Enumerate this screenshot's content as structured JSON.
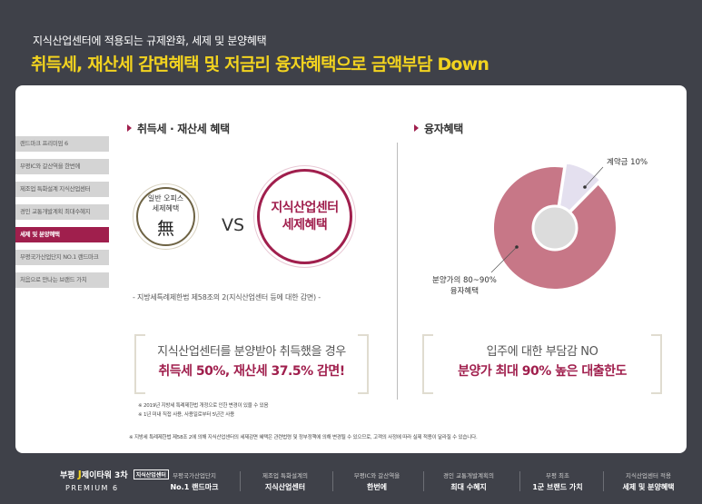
{
  "header": {
    "subtitle": "지식산업센터에 적용되는 규제완화, 세제 및 분양혜택",
    "title": "취득세, 재산세 감면혜택 및 저금리 융자혜택으로 금액부담 Down"
  },
  "sidebar": {
    "items": [
      {
        "label": "랜드마크 프리미엄 6"
      },
      {
        "label": "부평IC와 갈산역을 한번에"
      },
      {
        "label": "제조업 특화설계 지식산업센터"
      },
      {
        "label": "경인 교통개발계획 최대수혜지"
      },
      {
        "label": "세제 및 분양혜택"
      },
      {
        "label": "부평국가산업단지 NO.1 랜드마크"
      },
      {
        "label": "처음으로 만나는 브랜드 가치"
      }
    ],
    "active_index": 4
  },
  "tax": {
    "heading": "취득세 · 재산세 혜택",
    "general_line1": "일반 오피스",
    "general_line2": "세제혜택",
    "general_none": "無",
    "vs": "VS",
    "center_line1": "지식산업센터",
    "center_line2": "세제혜택",
    "law_note": "- 지방세특례제한법 제58조의 2(지식산업센터 등에 대한 감면) -",
    "box_line1": "지식산업센터를 분양받아 취득했을 경우",
    "box_line2": "취득세 50%, 재산세 37.5% 감면!",
    "foot1": "※ 2019년 지방세 특례제한법 개정으로 인한 변경이 있을 수 있음",
    "foot2": "※ 1년 미내 직접 사용, 사용일로부터 5년간 사용"
  },
  "loan": {
    "heading": "융자혜택",
    "box_line1": "입주에 대한 부담감 NO",
    "box_line2": "분양가 최대 90% 높은 대출한도"
  },
  "chart_data": {
    "type": "pie",
    "categories": [
      "계약금 10%",
      "분양가의 80~90% 융자혜택"
    ],
    "values": [
      10,
      90
    ],
    "colors": [
      "#e4e0ef",
      "#c77787"
    ],
    "labels": {
      "deposit": "계약금 10%",
      "loan_line1": "분양가의 80~90%",
      "loan_line2": "융자혜택"
    }
  },
  "bottom_note": "※ 지방세 특례제한법 제58조 2에 의해 지식산업센터의 세제감면 혜택은 관련법령 및 정부정책에 의해 변경될 수 있으므로, 고객의 사정에 따라 실제 적용이 달라질 수 있습니다.",
  "footer": {
    "brand_prefix": "부평",
    "brand_name": "제이타워 3차",
    "brand_tag": "지식산업센터",
    "brand_sub": "PREMIUM 6",
    "features": [
      {
        "small": "부평국가산업단지",
        "bold": "No.1 랜드마크"
      },
      {
        "small": "제조업 특화설계의",
        "bold": "지식산업센터"
      },
      {
        "small": "부평IC와 갈산역을",
        "bold": "한번에"
      },
      {
        "small": "경인 교통개발계획의",
        "bold": "최대 수혜지"
      },
      {
        "small": "부평 최초",
        "bold": "1군 브랜드 가치"
      },
      {
        "small": "지식산업센터 적용",
        "bold": "세제 및 분양혜택"
      }
    ]
  }
}
